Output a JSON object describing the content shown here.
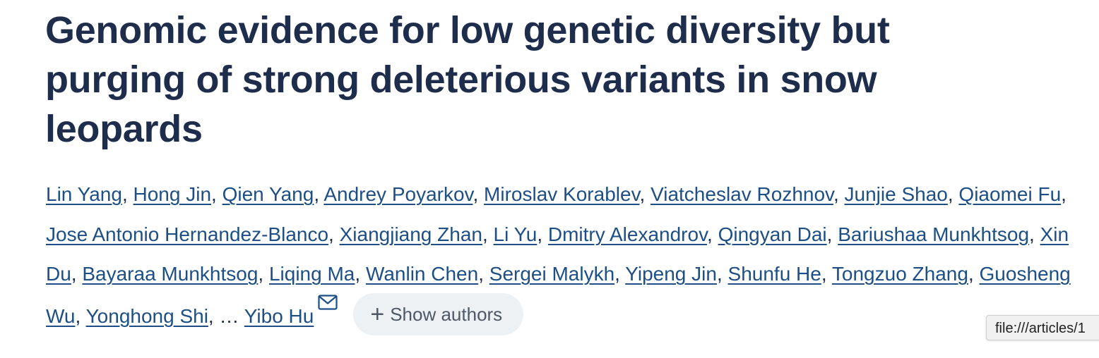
{
  "article": {
    "title": "Genomic evidence for low genetic diversity but purging of strong deleterious variants in snow leopards"
  },
  "authors": [
    "Lin Yang",
    "Hong Jin",
    "Qien Yang",
    "Andrey Poyarkov",
    "Miroslav Korablev",
    "Viatcheslav Rozhnov",
    "Junjie Shao",
    "Qiaomei Fu",
    "Jose Antonio Hernandez-Blanco",
    "Xiangjiang Zhan",
    "Li Yu",
    "Dmitry Alexandrov",
    "Qingyan Dai",
    "Bariushaa Munkhtsog",
    "Xin Du",
    "Bayaraa Munkhtsog",
    "Liqing Ma",
    "Wanlin Chen",
    "Sergei Malykh",
    "Yipeng Jin",
    "Shunfu He",
    "Tongzuo Zhang",
    "Guosheng Wu",
    "Yonghong Shi"
  ],
  "ellipsis": "…",
  "corresponding_author": "Yibo Hu",
  "corresponding_icon": "mail-icon",
  "show_authors": {
    "icon": "plus-icon",
    "label": "Show authors"
  },
  "status_bar": {
    "url": "file:///articles/1"
  }
}
